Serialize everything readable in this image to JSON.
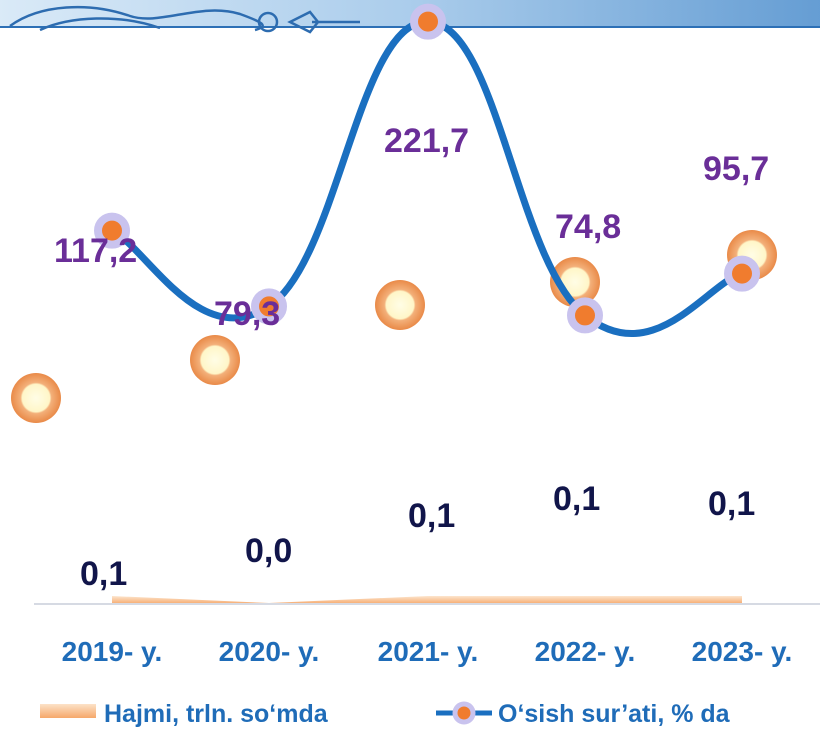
{
  "chart_data": {
    "type": "line",
    "categories": [
      "2019- y.",
      "2020- y.",
      "2021- y.",
      "2022- y.",
      "2023- y."
    ],
    "series": [
      {
        "name": "Hajmi, trln. so‘mda",
        "kind": "area",
        "values": [
          0.1,
          0.0,
          0.1,
          0.1,
          0.1
        ],
        "labels": [
          "0,1",
          "0,0",
          "0,1",
          "0,1",
          "0,1"
        ],
        "color": "#f7b27a"
      },
      {
        "name": "O‘sish sur’ati, % da",
        "kind": "line",
        "values": [
          117.2,
          79.3,
          221.7,
          74.8,
          95.7
        ],
        "labels": [
          "117,2",
          "79,3",
          "221,7",
          "74,8",
          "95,7"
        ],
        "color": "#1a6fc0"
      }
    ],
    "grid": false,
    "legend": "bottom"
  },
  "colors": {
    "growth_label": "#6a2e98",
    "volume_label": "#11154a",
    "axis_label": "#1f6cb8",
    "marker_fill": "#f07c2e",
    "marker_ring": "#c9c3ee"
  },
  "legend": {
    "volume_label": "Hajmi, trln. so‘mda",
    "growth_label": "O‘sish sur’ati, % da"
  },
  "decor": {
    "top_ornament": "scroll-flourish-ornament"
  }
}
